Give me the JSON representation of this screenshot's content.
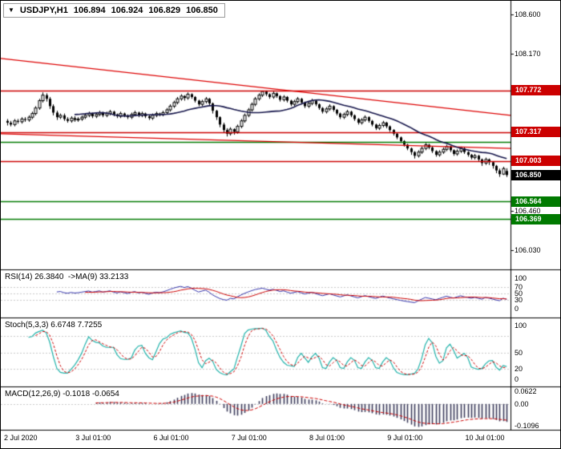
{
  "header": {
    "dropdown_icon": "▼",
    "symbol_period": "USDJPY,H1",
    "open": "106.894",
    "high": "106.924",
    "low": "106.829",
    "close": "106.850"
  },
  "colors": {
    "resistance": "#cc0000",
    "support": "#007a00",
    "current": "#000000",
    "trendline": "#dd0000",
    "candle_up": "#ffffff",
    "candle_down": "#000000",
    "candle_outline": "#000000",
    "ma_line": "#15154a",
    "rsi_line": "#3333aa",
    "rsi_ma_line": "#cc0000",
    "stoch_k_line": "#20b2aa",
    "stoch_d_line": "#cc0000",
    "macd_histogram": "#3c3c5c",
    "macd_signal": "#cc0000",
    "grid_dotted": "#c8c8c8"
  },
  "main_axis": {
    "ticks": [
      {
        "label": "108.600",
        "price": 108.6
      },
      {
        "label": "108.170",
        "price": 108.17
      },
      {
        "label": "106.460",
        "price": 106.46
      },
      {
        "label": "106.030",
        "price": 106.03
      }
    ]
  },
  "levels": [
    {
      "label": "107.772",
      "price": 107.772,
      "type": "resistance"
    },
    {
      "label": "107.317",
      "price": 107.317,
      "type": "resistance"
    },
    {
      "label": "107.003",
      "price": 107.003,
      "type": "resistance"
    },
    {
      "label": "106.564",
      "price": 106.564,
      "type": "support"
    },
    {
      "label": "106.369",
      "price": 106.369,
      "type": "support"
    },
    {
      "label": null,
      "price": 107.21,
      "type": "support"
    }
  ],
  "current_price": {
    "label": "106.850",
    "price": 106.85
  },
  "time_axis": [
    {
      "label": "2 Jul 2020",
      "index": 0
    },
    {
      "label": "3 Jul 01:00",
      "index": 22
    },
    {
      "label": "6 Jul 01:00",
      "index": 44
    },
    {
      "label": "7 Jul 01:00",
      "index": 66
    },
    {
      "label": "8 Jul 01:00",
      "index": 88
    },
    {
      "label": "9 Jul 01:00",
      "index": 110
    },
    {
      "label": "10 Jul 01:00",
      "index": 132
    }
  ],
  "panels": {
    "rsi": {
      "label": "RSI(14) 26.3840  ->MA(9) 33.2133",
      "ticks": [
        {
          "label": "100",
          "value": 100
        },
        {
          "label": "70",
          "value": 70
        },
        {
          "label": "50",
          "value": 50
        },
        {
          "label": "30",
          "value": 30
        },
        {
          "label": "0",
          "value": 0
        }
      ],
      "dotted_levels": [
        70,
        50,
        30
      ]
    },
    "stoch": {
      "label": "Stoch(5,3,3) 6.6748 7.7255",
      "ticks": [
        {
          "label": "100",
          "value": 100
        },
        {
          "label": "50",
          "value": 50
        },
        {
          "label": "20",
          "value": 20
        },
        {
          "label": "0",
          "value": 0
        }
      ],
      "dotted_levels": [
        80,
        50,
        20
      ]
    },
    "macd": {
      "label": "MACD(12,26,9) -0.1018 -0.0654",
      "ticks": [
        {
          "label": "0.0622",
          "value": 0.0622
        },
        {
          "label": "0.00",
          "value": 0
        },
        {
          "label": "-0.1096",
          "value": -0.1096
        }
      ],
      "dotted_levels": [
        0
      ]
    }
  },
  "chart_data": {
    "type": "candlestick",
    "symbol": "USDJPY",
    "timeframe": "H1",
    "title": "USDJPY,H1 106.894 106.924 106.829 106.850",
    "y_axis_range": [
      105.84,
      108.73
    ],
    "last_ohlc": {
      "open": 106.894,
      "high": 106.924,
      "low": 106.829,
      "close": 106.85
    },
    "trendlines": [
      {
        "from_price": 108.12,
        "to_price": 107.5
      },
      {
        "from_price": 107.3,
        "to_price": 107.14
      }
    ],
    "indicators": {
      "ma": {
        "period": 20
      },
      "rsi": {
        "period": 14,
        "current": 26.384,
        "ma_period": 9,
        "ma_current": 33.2133
      },
      "stochastic": {
        "params": [
          5,
          3,
          3
        ],
        "k_current": 6.6748,
        "d_current": 7.7255
      },
      "macd": {
        "params": [
          12,
          26,
          9
        ],
        "current": -0.1018,
        "signal_current": -0.0654,
        "visible_range": [
          -0.1096,
          0.0622
        ]
      }
    },
    "ohlc_format": [
      "open",
      "high",
      "low",
      "close"
    ],
    "candles": [
      [
        107.44,
        107.46,
        107.39,
        107.42
      ],
      [
        107.42,
        107.44,
        107.38,
        107.4
      ],
      [
        107.4,
        107.46,
        107.38,
        107.44
      ],
      [
        107.44,
        107.46,
        107.41,
        107.43
      ],
      [
        107.43,
        107.48,
        107.41,
        107.46
      ],
      [
        107.46,
        107.48,
        107.43,
        107.45
      ],
      [
        107.45,
        107.5,
        107.43,
        107.48
      ],
      [
        107.48,
        107.54,
        107.46,
        107.52
      ],
      [
        107.52,
        107.6,
        107.5,
        107.58
      ],
      [
        107.58,
        107.68,
        107.56,
        107.66
      ],
      [
        107.66,
        107.75,
        107.64,
        107.72
      ],
      [
        107.72,
        107.74,
        107.65,
        107.68
      ],
      [
        107.68,
        107.7,
        107.57,
        107.6
      ],
      [
        107.6,
        107.62,
        107.5,
        107.53
      ],
      [
        107.53,
        107.55,
        107.45,
        107.48
      ],
      [
        107.48,
        107.52,
        107.46,
        107.5
      ],
      [
        107.5,
        107.52,
        107.44,
        107.46
      ],
      [
        107.46,
        107.48,
        107.42,
        107.44
      ],
      [
        107.44,
        107.49,
        107.42,
        107.47
      ],
      [
        107.47,
        107.49,
        107.43,
        107.45
      ],
      [
        107.45,
        107.48,
        107.43,
        107.46
      ],
      [
        107.46,
        107.5,
        107.44,
        107.48
      ],
      [
        107.48,
        107.52,
        107.46,
        107.5
      ],
      [
        107.5,
        107.54,
        107.48,
        107.52
      ],
      [
        107.52,
        107.53,
        107.47,
        107.49
      ],
      [
        107.49,
        107.53,
        107.47,
        107.51
      ],
      [
        107.51,
        107.55,
        107.49,
        107.53
      ],
      [
        107.53,
        107.54,
        107.48,
        107.5
      ],
      [
        107.5,
        107.54,
        107.48,
        107.52
      ],
      [
        107.52,
        107.56,
        107.5,
        107.54
      ],
      [
        107.54,
        107.55,
        107.49,
        107.51
      ],
      [
        107.51,
        107.52,
        107.47,
        107.49
      ],
      [
        107.49,
        107.54,
        107.47,
        107.52
      ],
      [
        107.52,
        107.53,
        107.48,
        107.5
      ],
      [
        107.5,
        107.51,
        107.46,
        107.48
      ],
      [
        107.48,
        107.53,
        107.46,
        107.51
      ],
      [
        107.51,
        107.55,
        107.49,
        107.53
      ],
      [
        107.53,
        107.54,
        107.48,
        107.5
      ],
      [
        107.5,
        107.54,
        107.48,
        107.52
      ],
      [
        107.52,
        107.53,
        107.47,
        107.49
      ],
      [
        107.49,
        107.5,
        107.45,
        107.47
      ],
      [
        107.47,
        107.52,
        107.45,
        107.5
      ],
      [
        107.5,
        107.54,
        107.48,
        107.52
      ],
      [
        107.52,
        107.53,
        107.49,
        107.51
      ],
      [
        107.51,
        107.55,
        107.49,
        107.53
      ],
      [
        107.53,
        107.58,
        107.51,
        107.56
      ],
      [
        107.56,
        107.62,
        107.54,
        107.6
      ],
      [
        107.6,
        107.66,
        107.58,
        107.64
      ],
      [
        107.64,
        107.7,
        107.62,
        107.68
      ],
      [
        107.68,
        107.73,
        107.66,
        107.71
      ],
      [
        107.71,
        107.72,
        107.66,
        107.69
      ],
      [
        107.69,
        107.75,
        107.67,
        107.73
      ],
      [
        107.73,
        107.74,
        107.68,
        107.7
      ],
      [
        107.7,
        107.71,
        107.64,
        107.66
      ],
      [
        107.66,
        107.67,
        107.6,
        107.62
      ],
      [
        107.62,
        107.67,
        107.6,
        107.65
      ],
      [
        107.65,
        107.7,
        107.63,
        107.68
      ],
      [
        107.68,
        107.69,
        107.61,
        107.63
      ],
      [
        107.63,
        107.64,
        107.52,
        107.55
      ],
      [
        107.55,
        107.56,
        107.45,
        107.48
      ],
      [
        107.48,
        107.49,
        107.37,
        107.4
      ],
      [
        107.4,
        107.42,
        107.31,
        107.34
      ],
      [
        107.34,
        107.36,
        107.27,
        107.3
      ],
      [
        107.3,
        107.37,
        107.28,
        107.35
      ],
      [
        107.35,
        107.36,
        107.29,
        107.32
      ],
      [
        107.32,
        107.4,
        107.3,
        107.38
      ],
      [
        107.38,
        107.46,
        107.36,
        107.44
      ],
      [
        107.44,
        107.52,
        107.42,
        107.5
      ],
      [
        107.5,
        107.58,
        107.48,
        107.56
      ],
      [
        107.56,
        107.64,
        107.54,
        107.62
      ],
      [
        107.62,
        107.7,
        107.6,
        107.68
      ],
      [
        107.68,
        107.74,
        107.66,
        107.72
      ],
      [
        107.72,
        107.77,
        107.7,
        107.76
      ],
      [
        107.76,
        107.77,
        107.71,
        107.73
      ],
      [
        107.73,
        107.74,
        107.68,
        107.7
      ],
      [
        107.7,
        107.76,
        107.68,
        107.74
      ],
      [
        107.74,
        107.75,
        107.69,
        107.71
      ],
      [
        107.71,
        107.72,
        107.65,
        107.67
      ],
      [
        107.67,
        107.72,
        107.65,
        107.7
      ],
      [
        107.7,
        107.71,
        107.64,
        107.66
      ],
      [
        107.66,
        107.67,
        107.6,
        107.62
      ],
      [
        107.62,
        107.67,
        107.6,
        107.65
      ],
      [
        107.65,
        107.7,
        107.63,
        107.68
      ],
      [
        107.68,
        107.69,
        107.62,
        107.64
      ],
      [
        107.64,
        107.65,
        107.58,
        107.6
      ],
      [
        107.6,
        107.65,
        107.58,
        107.63
      ],
      [
        107.63,
        107.68,
        107.61,
        107.66
      ],
      [
        107.66,
        107.67,
        107.6,
        107.62
      ],
      [
        107.62,
        107.63,
        107.56,
        107.58
      ],
      [
        107.58,
        107.59,
        107.52,
        107.54
      ],
      [
        107.54,
        107.59,
        107.52,
        107.57
      ],
      [
        107.57,
        107.62,
        107.55,
        107.6
      ],
      [
        107.6,
        107.61,
        107.54,
        107.56
      ],
      [
        107.56,
        107.57,
        107.5,
        107.52
      ],
      [
        107.52,
        107.53,
        107.46,
        107.48
      ],
      [
        107.48,
        107.53,
        107.46,
        107.51
      ],
      [
        107.51,
        107.56,
        107.49,
        107.54
      ],
      [
        107.54,
        107.55,
        107.48,
        107.5
      ],
      [
        107.5,
        107.51,
        107.44,
        107.46
      ],
      [
        107.46,
        107.47,
        107.4,
        107.42
      ],
      [
        107.42,
        107.47,
        107.4,
        107.45
      ],
      [
        107.45,
        107.5,
        107.43,
        107.48
      ],
      [
        107.48,
        107.49,
        107.42,
        107.44
      ],
      [
        107.44,
        107.45,
        107.38,
        107.4
      ],
      [
        107.4,
        107.41,
        107.34,
        107.36
      ],
      [
        107.36,
        107.41,
        107.34,
        107.39
      ],
      [
        107.39,
        107.44,
        107.37,
        107.42
      ],
      [
        107.42,
        107.43,
        107.36,
        107.38
      ],
      [
        107.38,
        107.39,
        107.32,
        107.34
      ],
      [
        107.34,
        107.35,
        107.28,
        107.3
      ],
      [
        107.3,
        107.31,
        107.24,
        107.26
      ],
      [
        107.26,
        107.27,
        107.2,
        107.22
      ],
      [
        107.22,
        107.23,
        107.16,
        107.18
      ],
      [
        107.18,
        107.19,
        107.12,
        107.14
      ],
      [
        107.14,
        107.15,
        107.07,
        107.1
      ],
      [
        107.1,
        107.11,
        107.03,
        107.06
      ],
      [
        107.06,
        107.12,
        107.04,
        107.1
      ],
      [
        107.1,
        107.16,
        107.08,
        107.14
      ],
      [
        107.14,
        107.2,
        107.12,
        107.18
      ],
      [
        107.18,
        107.19,
        107.13,
        107.15
      ],
      [
        107.15,
        107.16,
        107.09,
        107.11
      ],
      [
        107.11,
        107.12,
        107.05,
        107.07
      ],
      [
        107.07,
        107.12,
        107.05,
        107.1
      ],
      [
        107.1,
        107.15,
        107.08,
        107.13
      ],
      [
        107.13,
        107.18,
        107.11,
        107.16
      ],
      [
        107.16,
        107.17,
        107.1,
        107.12
      ],
      [
        107.12,
        107.13,
        107.06,
        107.08
      ],
      [
        107.08,
        107.13,
        107.06,
        107.11
      ],
      [
        107.11,
        107.16,
        107.09,
        107.14
      ],
      [
        107.14,
        107.15,
        107.08,
        107.1
      ],
      [
        107.1,
        107.11,
        107.05,
        107.07
      ],
      [
        107.07,
        107.08,
        107.02,
        107.04
      ],
      [
        107.04,
        107.08,
        107.02,
        107.06
      ],
      [
        107.06,
        107.07,
        107.0,
        107.02
      ],
      [
        107.02,
        107.03,
        106.95,
        106.98
      ],
      [
        106.98,
        107.04,
        106.96,
        107.02
      ],
      [
        107.02,
        107.03,
        106.96,
        106.99
      ],
      [
        106.99,
        107.0,
        106.92,
        106.95
      ],
      [
        106.95,
        106.96,
        106.87,
        106.9
      ],
      [
        106.9,
        106.92,
        106.83,
        106.86
      ],
      [
        106.86,
        106.94,
        106.85,
        106.92
      ],
      [
        106.894,
        106.924,
        106.829,
        106.85
      ]
    ]
  }
}
